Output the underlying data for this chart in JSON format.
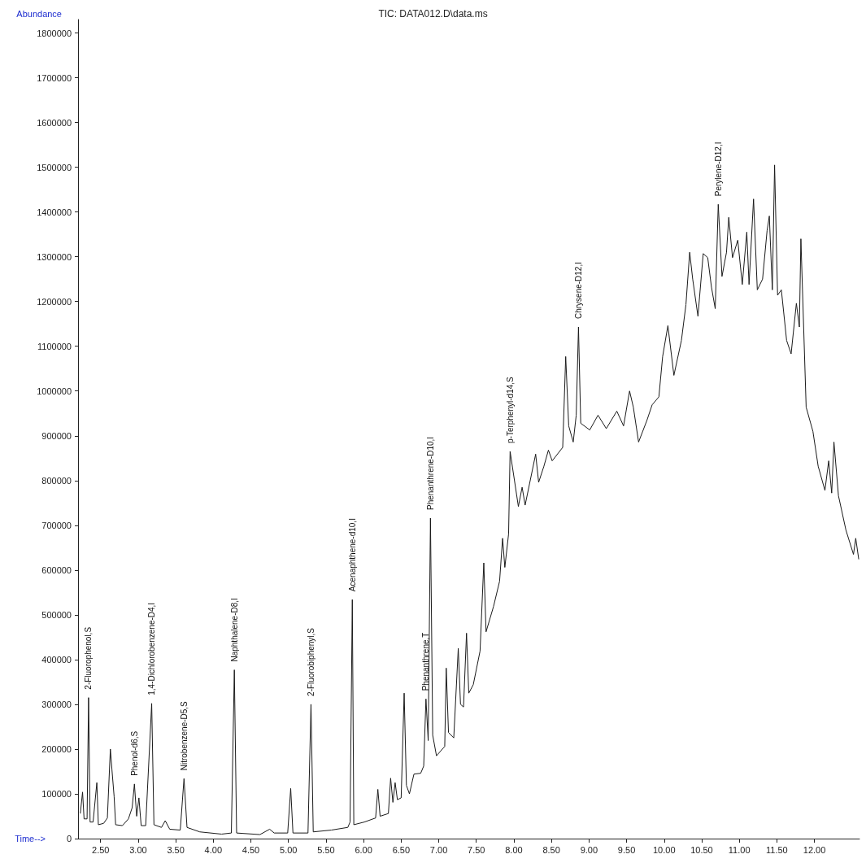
{
  "chart_data": {
    "type": "line",
    "title": "TIC: DATA012.D\\data.ms",
    "xlabel": "Time-->",
    "ylabel": "Abundance",
    "color": "#1a1a1a",
    "xlim": [
      2.2,
      12.6
    ],
    "xticks": [
      {
        "value": 2.5,
        "label": "2.50"
      },
      {
        "value": 3,
        "label": "3.00"
      },
      {
        "value": 3.5,
        "label": "3.50"
      },
      {
        "value": 4,
        "label": "4.00"
      },
      {
        "value": 4.5,
        "label": "4.50"
      },
      {
        "value": 5,
        "label": "5.00"
      },
      {
        "value": 5.5,
        "label": "5.50"
      },
      {
        "value": 6,
        "label": "6.00"
      },
      {
        "value": 6.5,
        "label": "6.50"
      },
      {
        "value": 7,
        "label": "7.00"
      },
      {
        "value": 7.5,
        "label": "7.50"
      },
      {
        "value": 8,
        "label": "8.00"
      },
      {
        "value": 8.5,
        "label": "8.50"
      },
      {
        "value": 9,
        "label": "9.00"
      },
      {
        "value": 9.5,
        "label": "9.50"
      },
      {
        "value": 10,
        "label": "10.00"
      },
      {
        "value": 10.5,
        "label": "10.50"
      },
      {
        "value": 11,
        "label": "11.00"
      },
      {
        "value": 11.5,
        "label": "11.50"
      },
      {
        "value": 12,
        "label": "12.00"
      }
    ],
    "ylim": [
      0,
      1830000
    ],
    "yticks": [
      0,
      100000,
      200000,
      300000,
      400000,
      500000,
      600000,
      700000,
      800000,
      900000,
      1000000,
      1100000,
      1200000,
      1300000,
      1400000,
      1500000,
      1600000,
      1700000,
      1800000
    ],
    "x": [
      2.23,
      2.26,
      2.28,
      2.32,
      2.34,
      2.36,
      2.4,
      2.45,
      2.47,
      2.54,
      2.59,
      2.63,
      2.65,
      2.68,
      2.7,
      2.79,
      2.87,
      2.92,
      2.95,
      2.98,
      3.01,
      3.04,
      3.1,
      3.18,
      3.21,
      3.31,
      3.36,
      3.42,
      3.56,
      3.61,
      3.65,
      3.82,
      4.11,
      4.24,
      4.28,
      4.31,
      4.62,
      4.75,
      4.81,
      4.99,
      5.03,
      5.06,
      5.26,
      5.3,
      5.33,
      5.57,
      5.79,
      5.82,
      5.85,
      5.87,
      6.01,
      6.16,
      6.19,
      6.22,
      6.33,
      6.36,
      6.39,
      6.42,
      6.45,
      6.5,
      6.54,
      6.57,
      6.61,
      6.67,
      6.76,
      6.8,
      6.83,
      6.86,
      6.89,
      6.92,
      6.97,
      7.08,
      7.1,
      7.13,
      7.2,
      7.26,
      7.29,
      7.33,
      7.37,
      7.4,
      7.46,
      7.55,
      7.6,
      7.63,
      7.73,
      7.81,
      7.85,
      7.88,
      7.93,
      7.95,
      8.06,
      8.11,
      8.15,
      8.29,
      8.33,
      8.4,
      8.46,
      8.51,
      8.65,
      8.69,
      8.73,
      8.79,
      8.83,
      8.86,
      8.89,
      9.01,
      9.12,
      9.23,
      9.37,
      9.46,
      9.54,
      9.59,
      9.66,
      9.77,
      9.84,
      9.93,
      9.98,
      10.05,
      10.13,
      10.23,
      10.29,
      10.34,
      10.38,
      10.45,
      10.52,
      10.58,
      10.63,
      10.68,
      10.72,
      10.77,
      10.83,
      10.86,
      10.91,
      10.98,
      11.04,
      11.1,
      11.13,
      11.19,
      11.24,
      11.31,
      11.37,
      11.4,
      11.44,
      11.47,
      11.51,
      11.56,
      11.63,
      11.69,
      11.76,
      11.8,
      11.82,
      11.89,
      11.98,
      12.05,
      12.14,
      12.19,
      12.23,
      12.26,
      12.32,
      12.42,
      12.52,
      12.55,
      12.59
    ],
    "values": [
      56000,
      104000,
      44000,
      44000,
      315000,
      37000,
      37000,
      125000,
      31000,
      34000,
      46000,
      200000,
      156000,
      94000,
      31000,
      29000,
      44000,
      69000,
      122000,
      50000,
      91000,
      29000,
      29000,
      302000,
      31000,
      25000,
      40000,
      21000,
      19000,
      134000,
      25000,
      15000,
      10000,
      12500,
      377000,
      12500,
      9000,
      21000,
      12500,
      12500,
      112000,
      12500,
      12500,
      300000,
      15000,
      19000,
      25000,
      37000,
      534000,
      31000,
      37000,
      46000,
      110000,
      50000,
      56000,
      135000,
      81000,
      125000,
      87000,
      91000,
      325000,
      119000,
      100000,
      144000,
      146000,
      162000,
      312000,
      219000,
      716000,
      231000,
      185000,
      206000,
      381000,
      237000,
      225000,
      425000,
      300000,
      294000,
      459000,
      325000,
      344000,
      419000,
      616000,
      462000,
      519000,
      575000,
      671000,
      606000,
      681000,
      865000,
      742000,
      785000,
      745000,
      859000,
      796000,
      832000,
      868000,
      844000,
      874000,
      1077000,
      922000,
      886000,
      946000,
      1143000,
      928000,
      913000,
      946000,
      916000,
      955000,
      922000,
      1000000,
      964000,
      886000,
      934000,
      969000,
      987000,
      1077000,
      1146000,
      1035000,
      1113000,
      1193000,
      1310000,
      1250000,
      1167000,
      1307000,
      1298000,
      1232000,
      1184000,
      1417000,
      1256000,
      1310000,
      1388000,
      1298000,
      1337000,
      1238000,
      1355000,
      1238000,
      1429000,
      1226000,
      1250000,
      1358000,
      1391000,
      1226000,
      1505000,
      1214000,
      1226000,
      1113000,
      1083000,
      1196000,
      1143000,
      1340000,
      964000,
      910000,
      832000,
      778000,
      844000,
      772000,
      886000,
      766000,
      689000,
      635000,
      671000,
      624000
    ],
    "annotations": [
      {
        "text": "2-Fluorophenol,S",
        "x": 2.34,
        "y": 315000
      },
      {
        "text": "Phenol-d6,S",
        "x": 2.95,
        "y": 122000
      },
      {
        "text": "1,4-Dichlorobenzene-D4,I",
        "x": 3.18,
        "y": 302000
      },
      {
        "text": "Nitrobenzene-D5,S",
        "x": 3.61,
        "y": 134000
      },
      {
        "text": "Naphthalene-D8,I",
        "x": 4.28,
        "y": 377000
      },
      {
        "text": "2-Fluorobiphenyl,S",
        "x": 5.3,
        "y": 300000
      },
      {
        "text": "Acenaphthene-d10,I",
        "x": 5.85,
        "y": 534000
      },
      {
        "text": "Phenanthrene,T",
        "x": 6.83,
        "y": 312000
      },
      {
        "text": "Phenanthrene-D10,I",
        "x": 6.89,
        "y": 716000
      },
      {
        "text": "p-Terphenyl-d14,S",
        "x": 7.95,
        "y": 865000
      },
      {
        "text": "Chrysene-D12,I",
        "x": 8.86,
        "y": 1143000
      },
      {
        "text": "Perylene-D12,I",
        "x": 10.72,
        "y": 1417000
      }
    ]
  }
}
